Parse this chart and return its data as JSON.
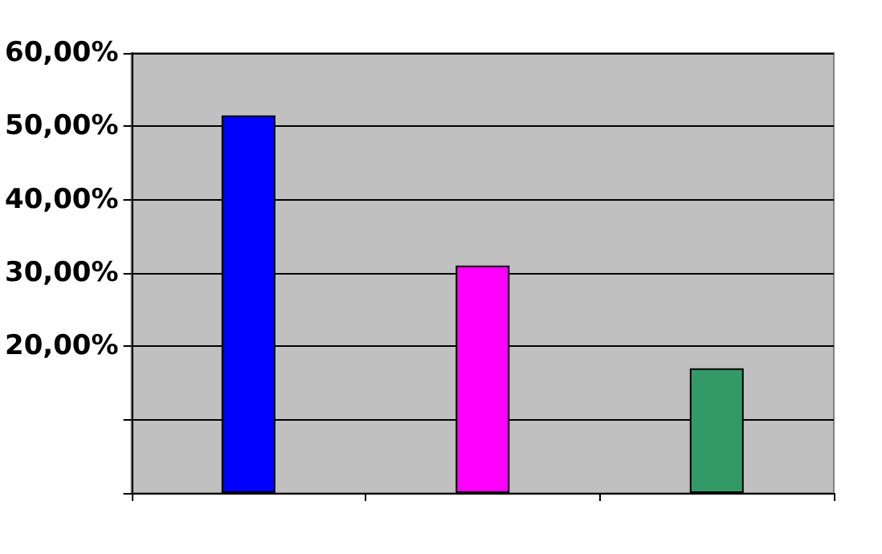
{
  "chart_data": {
    "type": "bar",
    "categories": [
      null,
      null,
      null
    ],
    "values": [
      51.5,
      31,
      17
    ],
    "colors": [
      "#0000ff",
      "#ff00ff",
      "#339966"
    ],
    "ylim": [
      0,
      60
    ],
    "yticks": [
      {
        "value": 0,
        "label": null
      },
      {
        "value": 10,
        "label": null
      },
      {
        "value": 20,
        "label": "20,00%"
      },
      {
        "value": 30,
        "label": "30,00%"
      },
      {
        "value": 40,
        "label": "40,00%"
      },
      {
        "value": 50,
        "label": "50,00%"
      },
      {
        "value": 60,
        "label": "60,00%"
      }
    ],
    "grid": "y"
  }
}
